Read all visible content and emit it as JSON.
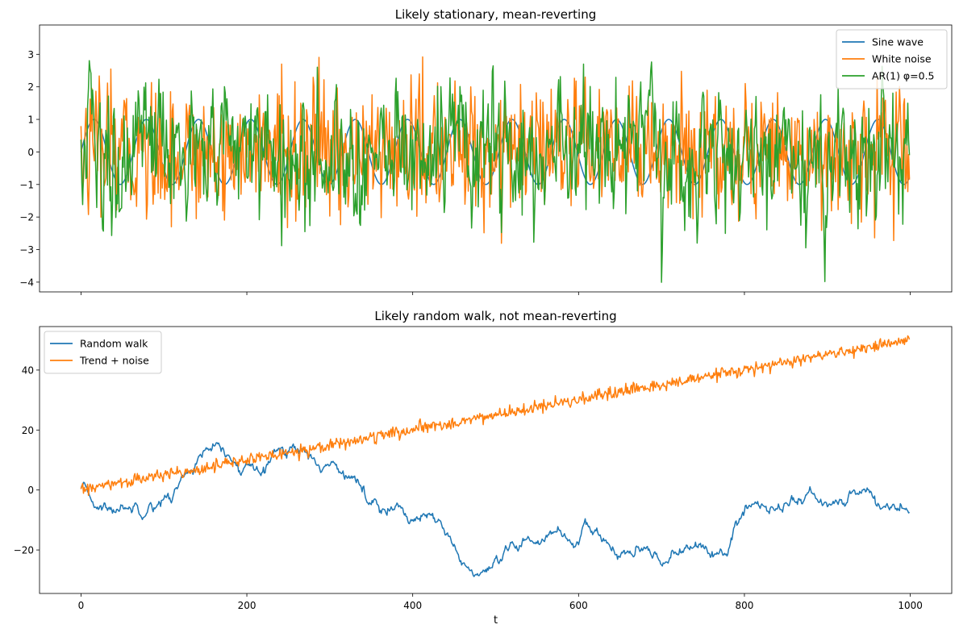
{
  "chart_data": [
    {
      "type": "line",
      "title": "Likely stationary, mean-reverting",
      "xlabel": "",
      "ylabel": "",
      "xlim": [
        -50,
        1050
      ],
      "ylim": [
        -4.3,
        3.9
      ],
      "x_range": [
        0,
        999
      ],
      "xticks": [
        0,
        200,
        400,
        600,
        800,
        1000
      ],
      "show_xtick_labels": false,
      "yticks": [
        -4,
        -3,
        -2,
        -1,
        0,
        1,
        2,
        3
      ],
      "grid": false,
      "legend_placement": "top-right",
      "series": [
        {
          "name": "Sine wave",
          "color": "#1f77b4",
          "generator": "sine",
          "amplitude": 1.0,
          "period_points": 63
        },
        {
          "name": "White noise",
          "color": "#ff7f0e",
          "generator": "white_noise",
          "std": 1.0
        },
        {
          "name": "AR(1) φ=0.5",
          "color": "#2ca02c",
          "generator": "ar1",
          "phi": 0.5,
          "std": 1.0
        }
      ]
    },
    {
      "type": "line",
      "title": "Likely random walk, not mean-reverting",
      "xlabel": "t",
      "ylabel": "",
      "xlim": [
        -50,
        1050
      ],
      "ylim": [
        -34.5,
        54.5
      ],
      "x_range": [
        0,
        999
      ],
      "xticks": [
        0,
        200,
        400,
        600,
        800,
        1000
      ],
      "show_xtick_labels": true,
      "yticks": [
        -20,
        0,
        20,
        40
      ],
      "grid": false,
      "legend_placement": "top-left",
      "series": [
        {
          "name": "Random walk",
          "color": "#1f77b4",
          "generator": "random_walk",
          "anchors": [
            [
              0,
              0
            ],
            [
              20,
              -5
            ],
            [
              35,
              -7
            ],
            [
              55,
              -5
            ],
            [
              80,
              -5
            ],
            [
              110,
              -2
            ],
            [
              130,
              7
            ],
            [
              160,
              14
            ],
            [
              180,
              10
            ],
            [
              190,
              6
            ],
            [
              210,
              9
            ],
            [
              230,
              12
            ],
            [
              250,
              14
            ],
            [
              270,
              13
            ],
            [
              285,
              9
            ],
            [
              300,
              8
            ],
            [
              320,
              7
            ],
            [
              335,
              2
            ],
            [
              345,
              -4
            ],
            [
              370,
              -4
            ],
            [
              390,
              -8
            ],
            [
              420,
              -10
            ],
            [
              440,
              -15
            ],
            [
              460,
              -24
            ],
            [
              480,
              -29
            ],
            [
              495,
              -28
            ],
            [
              515,
              -22
            ],
            [
              540,
              -17
            ],
            [
              560,
              -15
            ],
            [
              580,
              -14
            ],
            [
              600,
              -18
            ],
            [
              610,
              -14
            ],
            [
              630,
              -16
            ],
            [
              650,
              -22
            ],
            [
              670,
              -21
            ],
            [
              690,
              -23
            ],
            [
              700,
              -23
            ],
            [
              720,
              -20
            ],
            [
              740,
              -19
            ],
            [
              765,
              -20
            ],
            [
              780,
              -23
            ],
            [
              790,
              -12
            ],
            [
              810,
              -5
            ],
            [
              830,
              -5
            ],
            [
              860,
              -4
            ],
            [
              880,
              -2
            ],
            [
              890,
              -3
            ],
            [
              910,
              -6
            ],
            [
              930,
              -2
            ],
            [
              945,
              1
            ],
            [
              960,
              -4
            ],
            [
              980,
              -6
            ],
            [
              999,
              -6
            ]
          ],
          "noise_std": 1.2
        },
        {
          "name": "Trend + noise",
          "color": "#ff7f0e",
          "generator": "trend_noise",
          "slope": 0.05,
          "intercept": 0,
          "std": 1.0
        }
      ]
    }
  ]
}
